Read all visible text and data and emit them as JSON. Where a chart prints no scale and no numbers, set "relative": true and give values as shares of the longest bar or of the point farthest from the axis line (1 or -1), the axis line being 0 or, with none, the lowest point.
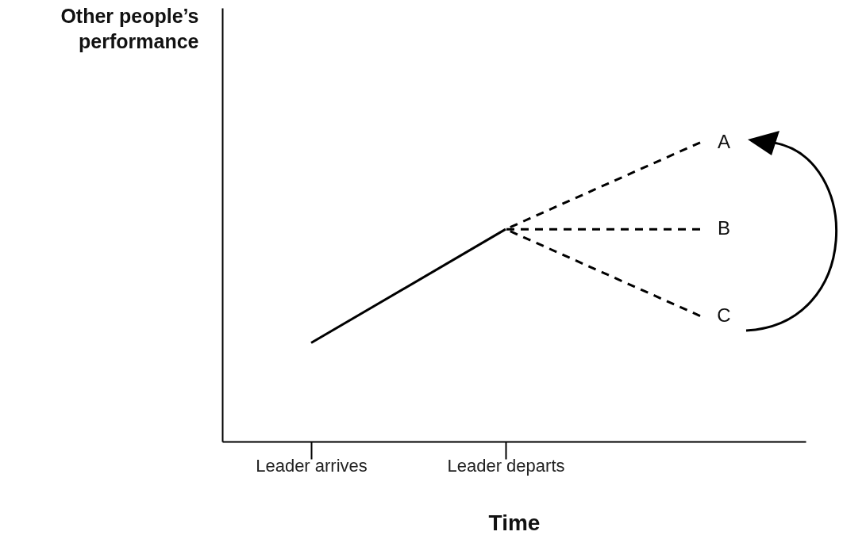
{
  "chart_data": {
    "type": "line",
    "relative": true,
    "xlabel": "Time",
    "ylabel": "Other people’s performance",
    "categories": [
      "Leader arrives",
      "Leader departs",
      null
    ],
    "series": [
      {
        "color": "#000000",
        "line_style": "solid",
        "values": [
          0.33,
          0.71,
          null
        ]
      },
      {
        "name": "A",
        "color": "#000000",
        "line_style": "dashed",
        "values": [
          null,
          0.71,
          1
        ]
      },
      {
        "name": "B",
        "color": "#000000",
        "line_style": "dashed",
        "values": [
          null,
          0.71,
          0.71
        ]
      },
      {
        "name": "C",
        "color": "#000000",
        "line_style": "dashed",
        "values": [
          null,
          0.71,
          0.42
        ]
      }
    ]
  }
}
